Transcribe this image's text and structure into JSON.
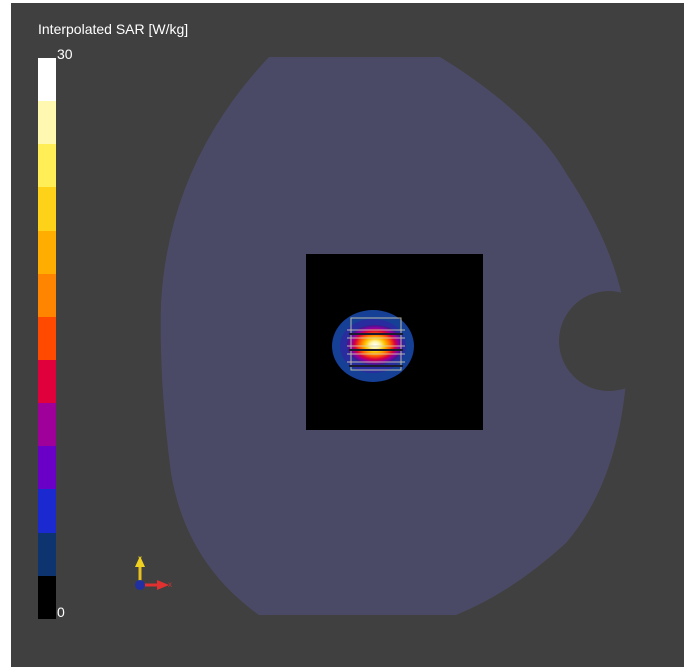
{
  "legend": {
    "title": "Interpolated SAR [W/kg]",
    "max_label": "30",
    "min_label": "0",
    "colors": [
      "#ffffff",
      "#fff8b0",
      "#ffee55",
      "#ffd21a",
      "#ffad00",
      "#ff8400",
      "#ff4a00",
      "#e0003c",
      "#a0009a",
      "#6a00c8",
      "#1a2ad0",
      "#0e3470",
      "#000000"
    ]
  },
  "scene": {
    "background_color": "#404040",
    "phantom_color": "#4a4a66",
    "sar_region_color": "#000000",
    "axis_labels": {
      "y": "Y",
      "x": "X"
    }
  }
}
